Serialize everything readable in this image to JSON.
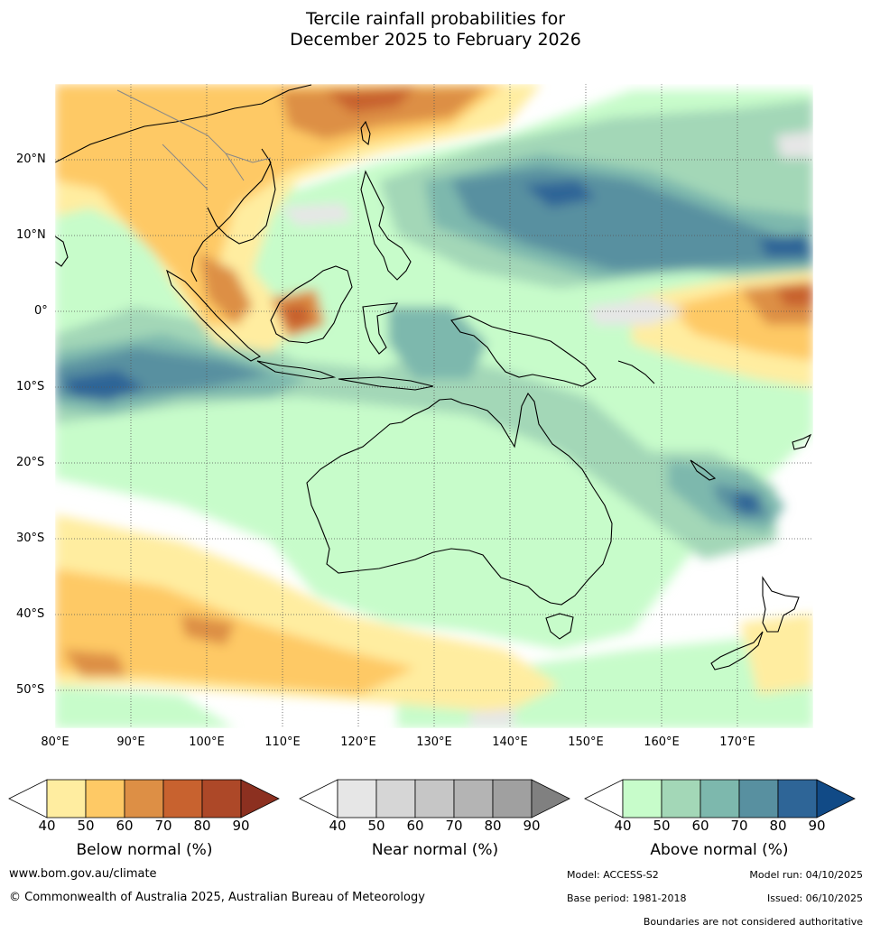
{
  "title": {
    "line1": "Tercile rainfall probabilities for",
    "line2": "December 2025 to February 2026"
  },
  "map": {
    "lon_range": [
      80,
      180
    ],
    "lat_range": [
      -55,
      30
    ],
    "lat_labels": [
      "20°N",
      "10°N",
      "0°",
      "10°S",
      "20°S",
      "30°S",
      "40°S",
      "50°S"
    ],
    "lon_labels": [
      "80°E",
      "90°E",
      "100°E",
      "110°E",
      "120°E",
      "130°E",
      "140°E",
      "150°E",
      "160°E",
      "170°E"
    ],
    "gridlines": "dotted"
  },
  "legends": {
    "below": {
      "title": "Below normal (%)",
      "ticks": [
        "40",
        "50",
        "60",
        "70",
        "80",
        "90"
      ],
      "colors": [
        "#ffeda0",
        "#fec965",
        "#dd8f45",
        "#c8622f",
        "#ad4828",
        "#8c3020"
      ]
    },
    "near": {
      "title": "Near normal (%)",
      "ticks": [
        "40",
        "50",
        "60",
        "70",
        "80",
        "90"
      ],
      "colors": [
        "#e6e6e6",
        "#d6d6d6",
        "#c6c6c6",
        "#b4b4b4",
        "#a0a0a0",
        "#808080"
      ]
    },
    "above": {
      "title": "Above normal (%)",
      "ticks": [
        "40",
        "50",
        "60",
        "70",
        "80",
        "90"
      ],
      "colors": [
        "#c7fcca",
        "#a3d7b7",
        "#7db8ad",
        "#5890a0",
        "#2e6597",
        "#114a86"
      ]
    }
  },
  "footer": {
    "website": "www.bom.gov.au/climate",
    "copyright": "© Commonwealth of Australia 2025, Australian Bureau of Meteorology",
    "model": "Model: ACCESS-S2",
    "model_run": "Model run: 04/10/2025",
    "base_period": "Base period: 1981-2018",
    "issued": "Issued: 06/10/2025",
    "disclaimer": "Boundaries are not considered authoritative"
  }
}
